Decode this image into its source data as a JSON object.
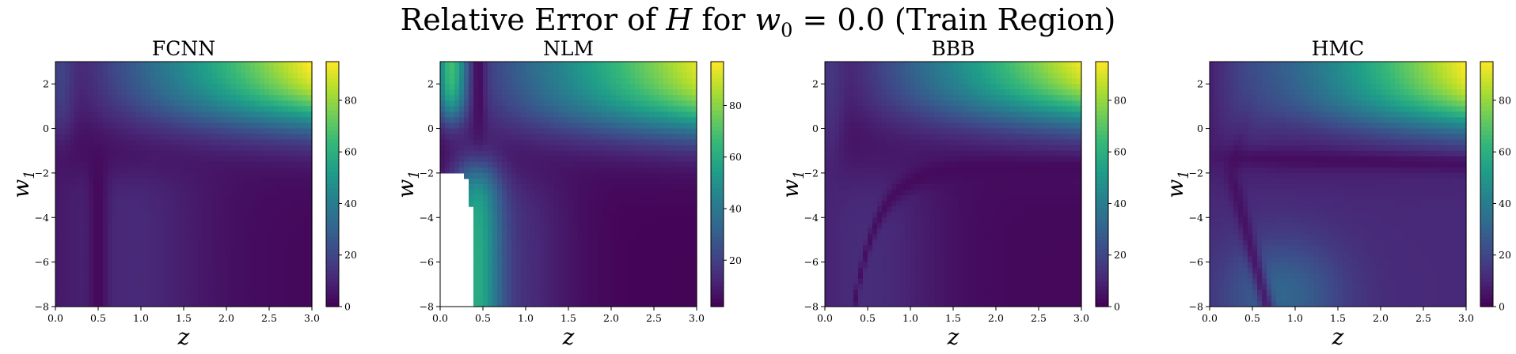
{
  "suptitle": {
    "prefix": "Relative Error of ",
    "var_h": "H",
    "middle": " for ",
    "var_w": "w",
    "sub": "0",
    "suffix": " = 0.0 (Train Region)"
  },
  "chart_data": [
    {
      "type": "heatmap",
      "title": "FCNN",
      "xlabel": "z",
      "ylabel": "w",
      "ylabel_sub": "1",
      "xlim": [
        0,
        3
      ],
      "ylim": [
        -8,
        3
      ],
      "xticks": [
        0.0,
        0.5,
        1.0,
        1.5,
        2.0,
        2.5,
        3.0
      ],
      "yticks": [
        -8,
        -6,
        -4,
        -2,
        0,
        2
      ],
      "colorbar": {
        "range": [
          0,
          95
        ],
        "ticks": [
          0,
          20,
          40,
          60,
          80
        ]
      },
      "colormap": "viridis",
      "pattern": "fcnn"
    },
    {
      "type": "heatmap",
      "title": "NLM",
      "xlabel": "z",
      "ylabel": "w",
      "ylabel_sub": "1",
      "xlim": [
        0,
        3
      ],
      "ylim": [
        -8,
        3
      ],
      "xticks": [
        0.0,
        0.5,
        1.0,
        1.5,
        2.0,
        2.5,
        3.0
      ],
      "yticks": [
        -8,
        -6,
        -4,
        -2,
        0,
        2
      ],
      "colorbar": {
        "range": [
          2,
          97
        ],
        "ticks": [
          20,
          40,
          60,
          80
        ]
      },
      "colormap": "viridis",
      "pattern": "nlm"
    },
    {
      "type": "heatmap",
      "title": "BBB",
      "xlabel": "z",
      "ylabel": "w",
      "ylabel_sub": "1",
      "xlim": [
        0,
        3
      ],
      "ylim": [
        -8,
        3
      ],
      "xticks": [
        0.0,
        0.5,
        1.0,
        1.5,
        2.0,
        2.5,
        3.0
      ],
      "yticks": [
        -8,
        -6,
        -4,
        -2,
        0,
        2
      ],
      "colorbar": {
        "range": [
          0,
          95
        ],
        "ticks": [
          0,
          20,
          40,
          60,
          80
        ]
      },
      "colormap": "viridis",
      "pattern": "bbb"
    },
    {
      "type": "heatmap",
      "title": "HMC",
      "xlabel": "z",
      "ylabel": "w",
      "ylabel_sub": "1",
      "xlim": [
        0,
        3
      ],
      "ylim": [
        -8,
        3
      ],
      "xticks": [
        0.0,
        0.5,
        1.0,
        1.5,
        2.0,
        2.5,
        3.0
      ],
      "yticks": [
        -8,
        -6,
        -4,
        -2,
        0,
        2
      ],
      "colorbar": {
        "range": [
          0,
          95
        ],
        "ticks": [
          0,
          20,
          40,
          60,
          80
        ]
      },
      "colormap": "viridis",
      "pattern": "hmc"
    }
  ]
}
